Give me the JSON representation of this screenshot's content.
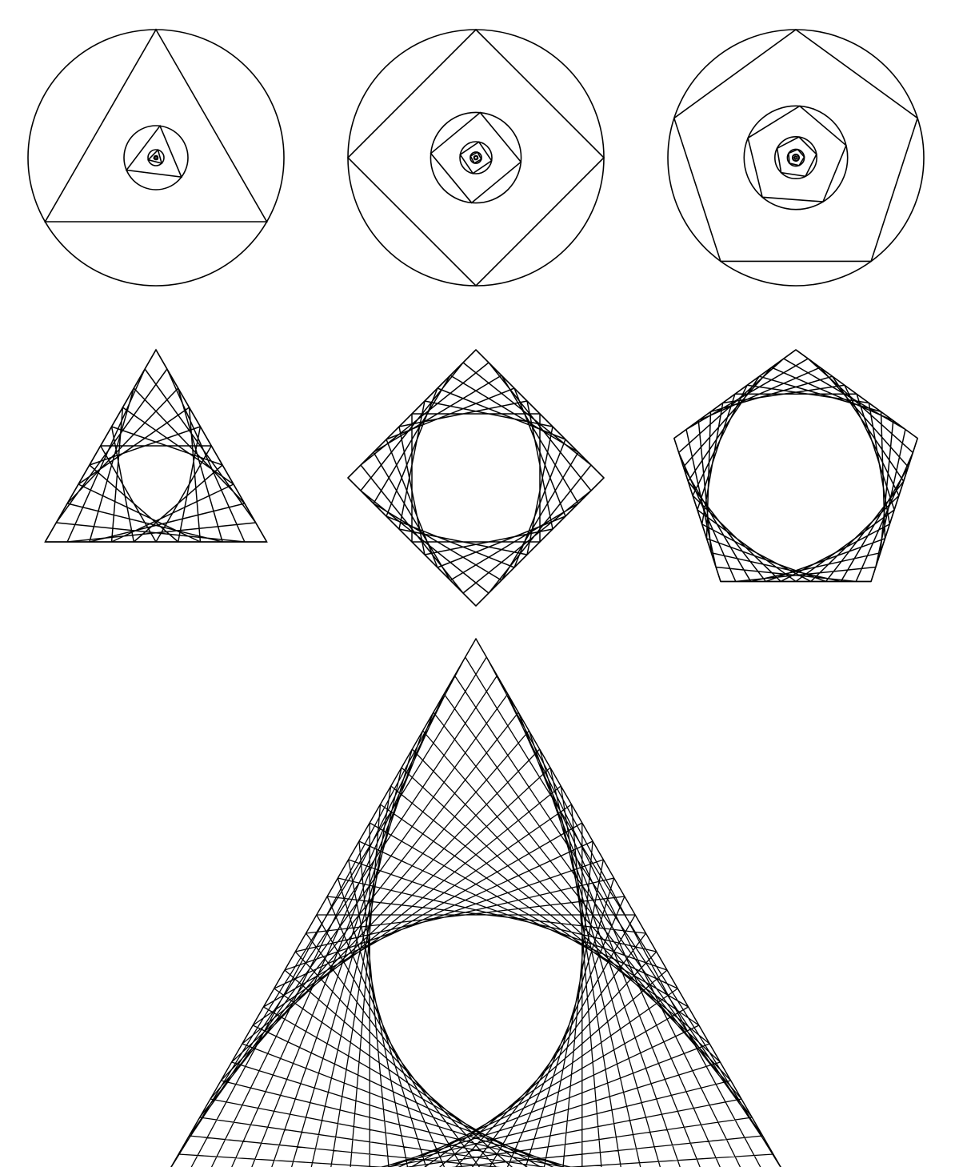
{
  "diagram": {
    "background": "#ffffff",
    "stroke": "#000000",
    "nested_figures": [
      {
        "id": "nested-triangles",
        "sides": 3,
        "depth": 8
      },
      {
        "id": "nested-squares",
        "sides": 4,
        "depth": 8
      },
      {
        "id": "nested-pentagons",
        "sides": 5,
        "depth": 8
      }
    ],
    "string_art_figures": [
      {
        "id": "string-art-triangle",
        "sides": 3,
        "divisions": 10
      },
      {
        "id": "string-art-square",
        "sides": 4,
        "divisions": 10
      },
      {
        "id": "string-art-pentagon",
        "sides": 5,
        "divisions": 10
      },
      {
        "id": "string-art-large-triangle",
        "sides": 3,
        "divisions": 30
      }
    ]
  }
}
